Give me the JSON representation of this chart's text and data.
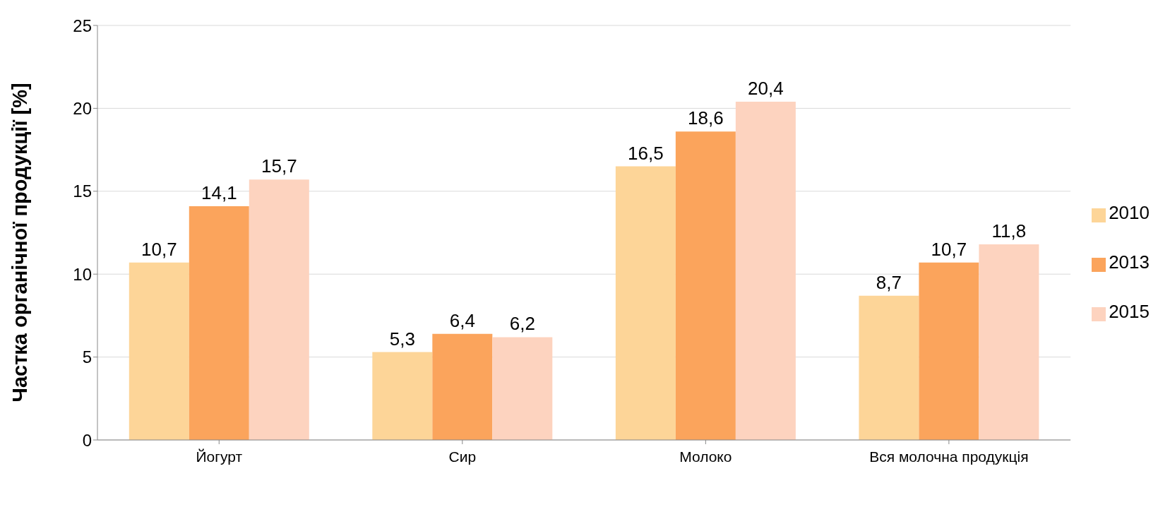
{
  "chart_data": {
    "type": "bar",
    "ylabel": "Частка органічної продукції [%]",
    "categories": [
      "Йогурт",
      "Сир",
      "Молоко",
      "Вся молочна продукція"
    ],
    "series": [
      {
        "name": "2010",
        "color": "#fdd598",
        "values": [
          10.7,
          5.3,
          16.5,
          8.7
        ],
        "value_labels": [
          "10,7",
          "5,3",
          "16,5",
          "8,7"
        ]
      },
      {
        "name": "2013",
        "color": "#fba45c",
        "values": [
          14.1,
          6.4,
          18.6,
          10.7
        ],
        "value_labels": [
          "14,1",
          "6,4",
          "18,6",
          "10,7"
        ]
      },
      {
        "name": "2015",
        "color": "#fdd3bf",
        "values": [
          15.7,
          6.2,
          20.4,
          11.8
        ],
        "value_labels": [
          "15,7",
          "6,2",
          "20,4",
          "11,8"
        ]
      }
    ],
    "ylim": [
      0,
      25
    ],
    "yticks": [
      0,
      5,
      10,
      15,
      20,
      25
    ],
    "grid": "y",
    "legend": "right"
  }
}
